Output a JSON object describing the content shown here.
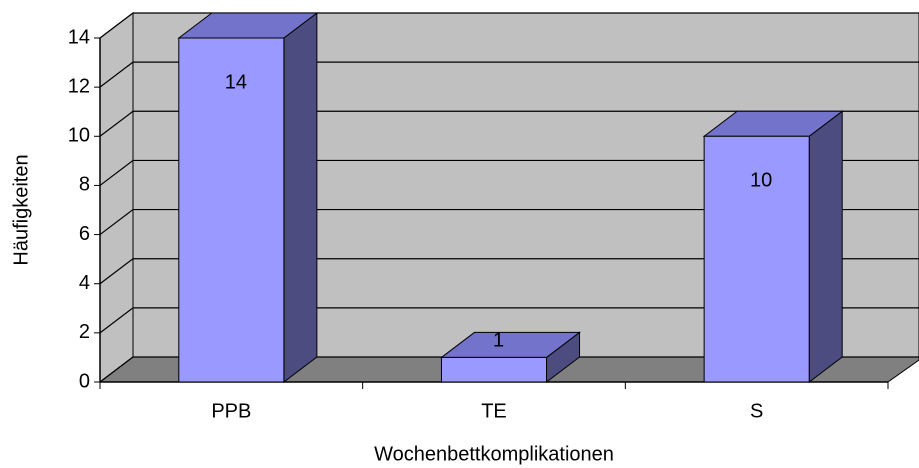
{
  "chart_data": {
    "type": "bar3d",
    "x_label": "Wochenbettkomplikationen",
    "y_label": "Häufigkeiten",
    "categories": [
      "PPB",
      "TE",
      "S"
    ],
    "values": [
      14,
      1,
      10
    ],
    "color": "#9999ff",
    "ylim": [
      0,
      14
    ],
    "yticks": [
      0,
      2,
      4,
      6,
      8,
      10,
      12,
      14
    ],
    "grid": true
  }
}
